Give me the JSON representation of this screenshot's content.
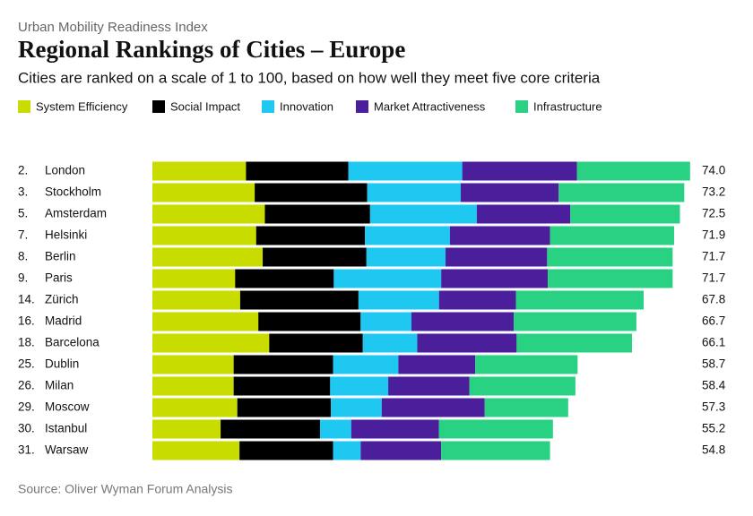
{
  "chart_data": {
    "type": "stacked-bar-horizontal",
    "supertitle": "Urban Mobility Readiness Index",
    "title": "Regional Rankings of Cities – Europe",
    "subtitle": "Cities are ranked on a scale of 1 to 100, based on how well they meet five core criteria",
    "source": "Source: Oliver Wyman Forum Analysis",
    "ranks": [
      "2.",
      "3.",
      "5.",
      "7.",
      "8.",
      "9.",
      "14.",
      "16.",
      "18.",
      "25.",
      "26.",
      "29.",
      "30.",
      "31."
    ],
    "categories": [
      "London",
      "Stockholm",
      "Amsterdam",
      "Helsinki",
      "Berlin",
      "Paris",
      "Zürich",
      "Madrid",
      "Barcelona",
      "Dublin",
      "Milan",
      "Moscow",
      "Istanbul",
      "Warsaw"
    ],
    "totals": [
      74,
      73.2,
      72.5,
      71.9,
      71.7,
      71.7,
      67.8,
      66.7,
      66.1,
      58.7,
      58.4,
      57.3,
      55.2,
      54.8
    ],
    "total_labels": [
      "74.0",
      "73.2",
      "72.5",
      "71.9",
      "71.7",
      "71.7",
      "67.8",
      "66.7",
      "66.1",
      "58.7",
      "58.4",
      "57.3",
      "55.2",
      "54.8"
    ],
    "series": [
      {
        "name": "System Efficiency",
        "color": "#c8dc00",
        "values": [
          12.9,
          14.1,
          15.5,
          14.3,
          15.2,
          11.4,
          12.1,
          14.6,
          16.1,
          11.2,
          11.2,
          11.7,
          9.4,
          12.0
        ]
      },
      {
        "name": "Social Impact",
        "color": "#000000",
        "values": [
          14.1,
          15.5,
          14.5,
          15.0,
          14.3,
          13.6,
          16.3,
          14.1,
          12.9,
          13.7,
          13.3,
          12.9,
          13.7,
          12.9
        ]
      },
      {
        "name": "Innovation",
        "color": "#1ec8f0",
        "values": [
          15.7,
          12.9,
          14.7,
          11.7,
          10.9,
          14.8,
          11.1,
          7.0,
          7.5,
          9.0,
          8.0,
          7.0,
          4.3,
          3.8
        ]
      },
      {
        "name": "Market Attractiveness",
        "color": "#4b1e9b",
        "values": [
          15.8,
          13.5,
          12.9,
          13.8,
          14.0,
          14.7,
          10.6,
          14.1,
          13.7,
          10.6,
          11.2,
          14.2,
          12.1,
          11.1
        ]
      },
      {
        "name": "Infrastructure",
        "color": "#28d282",
        "values": [
          15.6,
          17.3,
          15.1,
          17.1,
          17.3,
          17.2,
          17.6,
          16.9,
          15.9,
          14.1,
          14.6,
          11.5,
          15.7,
          15.0
        ]
      }
    ]
  }
}
